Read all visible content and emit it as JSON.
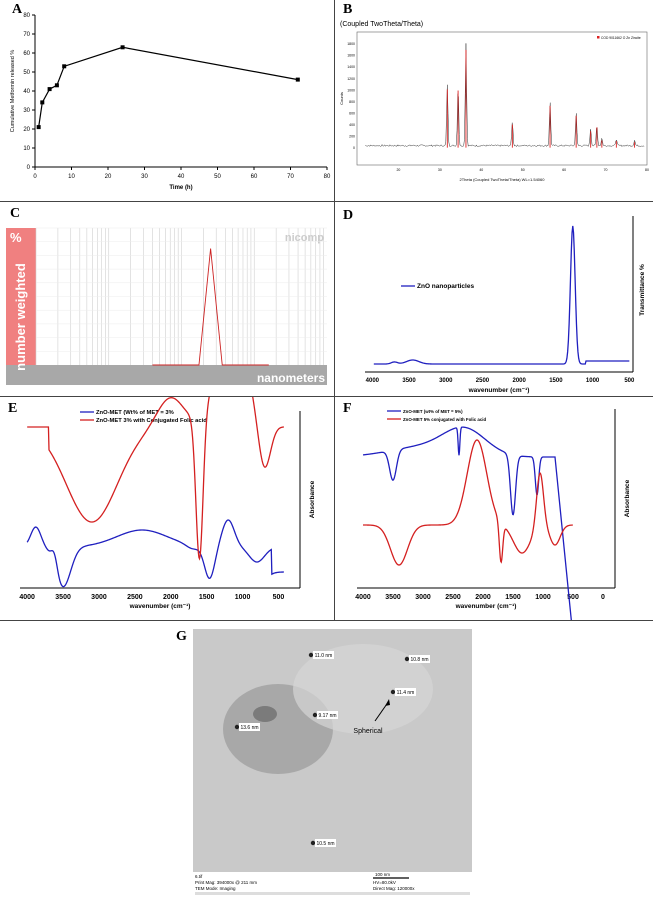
{
  "panels": {
    "A": {
      "letter": "A"
    },
    "B": {
      "letter": "B"
    },
    "C": {
      "letter": "C"
    },
    "D": {
      "letter": "D"
    },
    "E": {
      "letter": "E"
    },
    "F": {
      "letter": "F"
    },
    "G": {
      "letter": "G"
    }
  },
  "chart_data": [
    {
      "panel": "A",
      "type": "line",
      "ylabel": "Cumulative Metformin released %",
      "xlabel": "Time (h)",
      "xlim": [
        0,
        80
      ],
      "ylim": [
        0,
        80
      ],
      "xticks": [
        0,
        10,
        20,
        30,
        40,
        50,
        60,
        70,
        80
      ],
      "yticks": [
        0,
        10,
        20,
        30,
        40,
        50,
        60,
        70,
        80
      ],
      "x": [
        1,
        2,
        4,
        6,
        8,
        24,
        72
      ],
      "y": [
        21,
        34,
        41,
        43,
        53,
        63,
        46
      ],
      "color": "#000000"
    },
    {
      "panel": "B",
      "type": "line",
      "title": "(Coupled TwoTheta/Theta)",
      "xlabel": "2Theta (Coupled TwoTheta/Theta) WL=1.54060",
      "ylabel": "Counts",
      "legend": "COD 9011662 O Zn Zincite",
      "xlim": [
        10,
        80
      ],
      "ylim": [
        -300,
        2000
      ],
      "xticks": [
        20,
        30,
        40,
        50,
        60,
        70,
        80
      ],
      "yticks": [
        0,
        200,
        400,
        600,
        800,
        1000,
        1200,
        1400,
        1600,
        1800
      ],
      "peaks_x": [
        31.8,
        34.4,
        36.3,
        47.5,
        56.6,
        62.9,
        66.4,
        67.9,
        69.1,
        72.6,
        77
      ],
      "peaks_y": [
        1060,
        1040,
        1780,
        420,
        760,
        580,
        300,
        370,
        130,
        120,
        100
      ],
      "series_colors": [
        "#333333",
        "#dd2222"
      ]
    },
    {
      "panel": "C",
      "type": "line",
      "ylabel_text": "number weighted",
      "percent_label": "%",
      "xlabel": "nanometers",
      "watermark": "nicomp",
      "peak_x": [
        0.4,
        0.5,
        0.56,
        0.6,
        0.64,
        0.7,
        0.8
      ],
      "peak_y": [
        0,
        0,
        0,
        0.85,
        0,
        0,
        0
      ],
      "color": "#cc2222"
    },
    {
      "panel": "D",
      "type": "line",
      "legend": "ZnO nanoparticles",
      "xlabel": "wavenumber (cm⁻¹)",
      "ylabel": "Transmittance %",
      "xticks": [
        4000,
        3500,
        3000,
        2500,
        2000,
        1500,
        1000,
        500
      ],
      "xlim": [
        4100,
        450
      ],
      "color": "#1f1fbf"
    },
    {
      "panel": "E",
      "type": "line",
      "xlabel": "wavenumber (cm⁻¹)",
      "ylabel": "Absorbance",
      "xticks": [
        4000,
        3500,
        3000,
        2500,
        2000,
        1500,
        1000,
        500
      ],
      "xlim": [
        4100,
        200
      ],
      "series": [
        {
          "name": "ZnO-MET (Wt% of MET = 3%",
          "color": "#1f1fbf"
        },
        {
          "name": "ZnO-MET 3% with Conjugated Folic acid",
          "color": "#d42020"
        }
      ]
    },
    {
      "panel": "F",
      "type": "line",
      "xlabel": "wavenumber (cm⁻¹)",
      "ylabel": "Absorbance",
      "xticks": [
        4000,
        3500,
        3000,
        2500,
        2000,
        1500,
        1000,
        500,
        0
      ],
      "xlim": [
        4100,
        -200
      ],
      "series": [
        {
          "name": "ZnO-MET (wt% of MET = 5%)",
          "color": "#1f1fbf"
        },
        {
          "name": "ZnO-MET 5% conjugated with Folic acid",
          "color": "#d42020"
        }
      ]
    }
  ],
  "tem": {
    "labels": [
      "11.0 nm",
      "10.8 nm",
      "11.4 nm",
      "9.17 nm",
      "13.6 nm",
      "10.5 nm"
    ],
    "annotation": "Spherical",
    "footer_left": [
      "6.tif",
      "Print Mag: 394000x @ 211 mm",
      "TEM Mode: Imaging"
    ],
    "scale": "100 nm",
    "footer_right": [
      "HV=80.0kV",
      "Direct Mag: 120000x"
    ]
  }
}
